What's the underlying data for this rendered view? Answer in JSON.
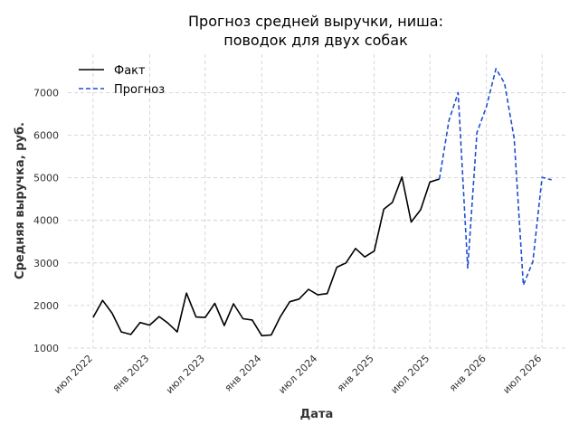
{
  "chart_data": {
    "type": "line",
    "title": [
      "Прогноз средней выручки, ниша:",
      "поводок для двух собак"
    ],
    "xlabel": "Дата",
    "ylabel": "Средняя выручка, руб.",
    "ylim": [
      1000,
      7900
    ],
    "xlim": [
      "2022-04-10",
      "2026-09-15"
    ],
    "yticks": [
      1000,
      2000,
      3000,
      4000,
      5000,
      6000,
      7000
    ],
    "xticks": [
      {
        "date": "2022-07-01",
        "label": "июл 2022"
      },
      {
        "date": "2023-01-01",
        "label": "янв 2023"
      },
      {
        "date": "2023-07-01",
        "label": "июл 2023"
      },
      {
        "date": "2024-01-01",
        "label": "янв 2024"
      },
      {
        "date": "2024-07-01",
        "label": "июл 2024"
      },
      {
        "date": "2025-01-01",
        "label": "янв 2025"
      },
      {
        "date": "2025-07-01",
        "label": "июл 2025"
      },
      {
        "date": "2026-01-01",
        "label": "янв 2026"
      },
      {
        "date": "2026-07-01",
        "label": "июл 2026"
      }
    ],
    "grid": true,
    "legend_position": "top-left",
    "series": [
      {
        "name": "Факт",
        "style": "solid",
        "color": "#000000",
        "points": [
          [
            "2022-07-01",
            1720
          ],
          [
            "2022-08-01",
            2120
          ],
          [
            "2022-09-01",
            1820
          ],
          [
            "2022-10-01",
            1380
          ],
          [
            "2022-11-01",
            1320
          ],
          [
            "2022-12-01",
            1600
          ],
          [
            "2023-01-01",
            1540
          ],
          [
            "2023-02-01",
            1740
          ],
          [
            "2023-03-01",
            1590
          ],
          [
            "2023-04-01",
            1380
          ],
          [
            "2023-05-01",
            2290
          ],
          [
            "2023-06-01",
            1730
          ],
          [
            "2023-07-01",
            1720
          ],
          [
            "2023-08-01",
            2050
          ],
          [
            "2023-09-01",
            1530
          ],
          [
            "2023-10-01",
            2040
          ],
          [
            "2023-11-01",
            1690
          ],
          [
            "2023-12-01",
            1660
          ],
          [
            "2024-01-01",
            1290
          ],
          [
            "2024-02-01",
            1310
          ],
          [
            "2024-03-01",
            1730
          ],
          [
            "2024-04-01",
            2090
          ],
          [
            "2024-05-01",
            2150
          ],
          [
            "2024-06-01",
            2380
          ],
          [
            "2024-07-01",
            2250
          ],
          [
            "2024-08-01",
            2280
          ],
          [
            "2024-09-01",
            2900
          ],
          [
            "2024-10-01",
            3000
          ],
          [
            "2024-11-01",
            3340
          ],
          [
            "2024-12-01",
            3140
          ],
          [
            "2025-01-01",
            3280
          ],
          [
            "2025-02-01",
            4260
          ],
          [
            "2025-03-01",
            4420
          ],
          [
            "2025-04-01",
            5020
          ],
          [
            "2025-05-01",
            3960
          ],
          [
            "2025-06-01",
            4250
          ],
          [
            "2025-07-01",
            4900
          ],
          [
            "2025-08-01",
            4970
          ]
        ]
      },
      {
        "name": "Прогноз",
        "style": "dashed",
        "color": "#1f4fd1",
        "points": [
          [
            "2025-08-01",
            4970
          ],
          [
            "2025-09-01",
            6340
          ],
          [
            "2025-10-01",
            7000
          ],
          [
            "2025-11-01",
            2880
          ],
          [
            "2025-12-01",
            6060
          ],
          [
            "2026-01-01",
            6670
          ],
          [
            "2026-02-01",
            7560
          ],
          [
            "2026-03-01",
            7220
          ],
          [
            "2026-04-01",
            5930
          ],
          [
            "2026-05-01",
            2480
          ],
          [
            "2026-06-01",
            3030
          ],
          [
            "2026-07-01",
            5010
          ],
          [
            "2026-08-01",
            4950
          ]
        ]
      }
    ]
  }
}
